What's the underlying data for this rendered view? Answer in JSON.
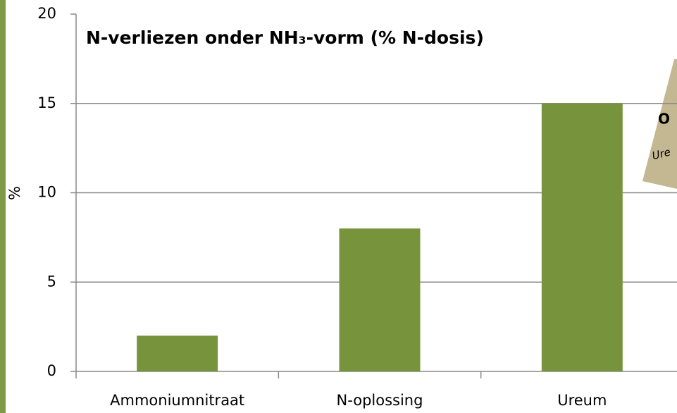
{
  "chart_data": {
    "type": "bar",
    "title": "N-verliezen onder NH₃-vorm (% N-dosis)",
    "y_label": "%",
    "categories": [
      "Ammoniumnitraat",
      "N-oplossing",
      "Ureum"
    ],
    "values": [
      2,
      8,
      15
    ],
    "color": "#77933c",
    "ylim": [
      0,
      20
    ],
    "yticks": [
      0,
      5,
      10,
      15,
      20
    ],
    "grid": true,
    "annotations": [
      "O",
      "Ure"
    ]
  }
}
